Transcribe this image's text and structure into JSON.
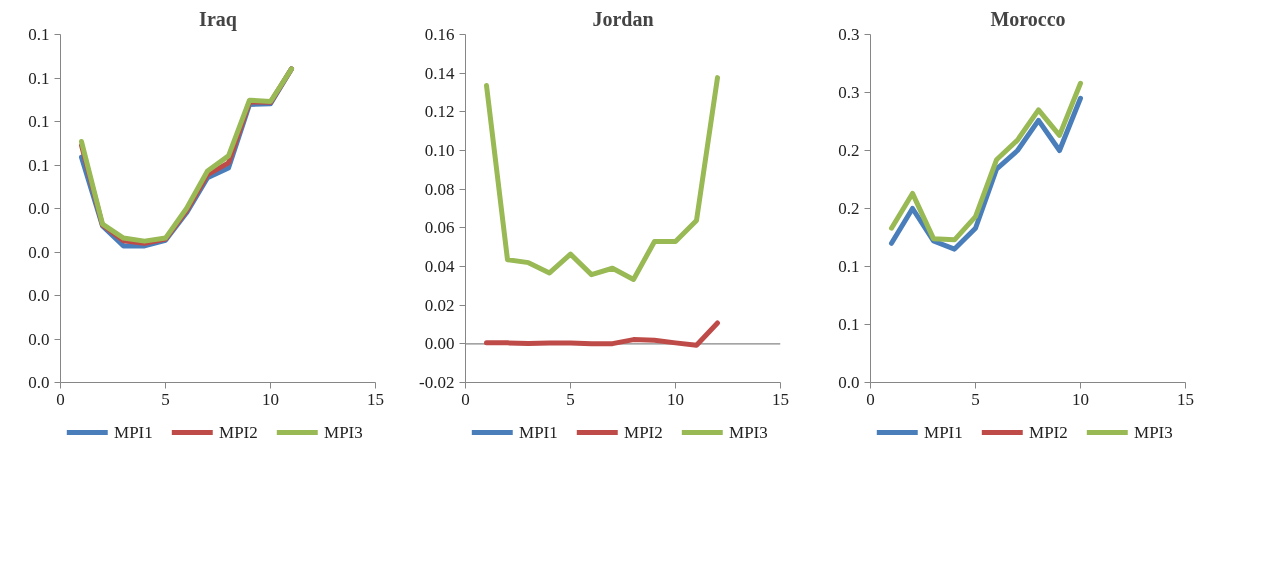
{
  "chart_data": [
    {
      "type": "line",
      "title": "Iraq",
      "x": [
        1,
        2,
        3,
        4,
        5,
        6,
        7,
        8,
        9,
        10,
        11
      ],
      "xlim": [
        0,
        15
      ],
      "xticks": [
        0,
        5,
        10,
        15
      ],
      "ylim": [
        0,
        0.08
      ],
      "yticks": [
        {
          "value": 0,
          "label": "0.0"
        },
        {
          "value": 0.01,
          "label": "0.0"
        },
        {
          "value": 0.02,
          "label": "0.0"
        },
        {
          "value": 0.03,
          "label": "0.0"
        },
        {
          "value": 0.04,
          "label": "0.0"
        },
        {
          "value": 0.05,
          "label": "0.1"
        },
        {
          "value": 0.06,
          "label": "0.1"
        },
        {
          "value": 0.07,
          "label": "0.1"
        },
        {
          "value": 0.08,
          "label": "0.1"
        }
      ],
      "grid": false,
      "legend": "bottom",
      "series": [
        {
          "name": "MPI1",
          "color": "#4a7ebb",
          "values": [
            0.0518,
            0.036,
            0.0314,
            0.0314,
            0.0327,
            0.039,
            0.0471,
            0.0493,
            0.0639,
            0.0641,
            0.0721
          ]
        },
        {
          "name": "MPI2",
          "color": "#be4b48",
          "values": [
            0.0545,
            0.0362,
            0.0326,
            0.032,
            0.033,
            0.0395,
            0.0478,
            0.0505,
            0.0645,
            0.0644,
            0.0721
          ]
        },
        {
          "name": "MPI3",
          "color": "#98b954",
          "values": [
            0.0554,
            0.0364,
            0.0332,
            0.0325,
            0.0332,
            0.04,
            0.0486,
            0.0521,
            0.0649,
            0.0646,
            0.0721
          ]
        }
      ]
    },
    {
      "type": "line",
      "title": "Jordan",
      "x": [
        1,
        2,
        3,
        4,
        5,
        6,
        7,
        8,
        9,
        10,
        11,
        12
      ],
      "xlim": [
        0,
        15
      ],
      "xticks": [
        0,
        5,
        10,
        15
      ],
      "ylim": [
        -0.02,
        0.16
      ],
      "yticks": [
        {
          "value": -0.02,
          "label": "-0.02"
        },
        {
          "value": 0,
          "label": "0.00"
        },
        {
          "value": 0.02,
          "label": "0.02"
        },
        {
          "value": 0.04,
          "label": "0.04"
        },
        {
          "value": 0.06,
          "label": "0.06"
        },
        {
          "value": 0.08,
          "label": "0.08"
        },
        {
          "value": 0.1,
          "label": "0.10"
        },
        {
          "value": 0.12,
          "label": "0.12"
        },
        {
          "value": 0.14,
          "label": "0.14"
        },
        {
          "value": 0.16,
          "label": "0.16"
        }
      ],
      "grid": false,
      "legend": "bottom",
      "ref_lines": [
        {
          "axis": "y",
          "value": 0,
          "color": "#868686"
        }
      ],
      "series": [
        {
          "name": "MPI1",
          "color": "#4a7ebb",
          "values": [
            null,
            null,
            null,
            null,
            null,
            null,
            null,
            null,
            null,
            null,
            null,
            null
          ]
        },
        {
          "name": "MPI2",
          "color": "#be4b48",
          "values": [
            0.0005,
            0.0005,
            0.0002,
            0.0004,
            0.0004,
            0,
            0.0001,
            0.0022,
            0.0018,
            0.0005,
            -0.0007,
            0.0108
          ]
        },
        {
          "name": "MPI3",
          "color": "#98b954",
          "values": [
            0.1336,
            0.0435,
            0.042,
            0.0367,
            0.0464,
            0.0358,
            0.0391,
            0.0333,
            0.0529,
            0.0529,
            0.0638,
            0.1377
          ]
        }
      ]
    },
    {
      "type": "line",
      "title": "Morocco",
      "x": [
        1,
        2,
        3,
        4,
        5,
        6,
        7,
        8,
        9,
        10
      ],
      "xlim": [
        0,
        15
      ],
      "xticks": [
        0,
        5,
        10,
        15
      ],
      "ylim": [
        0,
        0.3
      ],
      "yticks": [
        {
          "value": 0,
          "label": "0.0"
        },
        {
          "value": 0.05,
          "label": "0.1"
        },
        {
          "value": 0.1,
          "label": "0.1"
        },
        {
          "value": 0.15,
          "label": "0.2"
        },
        {
          "value": 0.2,
          "label": "0.2"
        },
        {
          "value": 0.25,
          "label": "0.3"
        },
        {
          "value": 0.3,
          "label": "0.3"
        }
      ],
      "grid": false,
      "legend": "bottom",
      "series": [
        {
          "name": "MPI1",
          "color": "#4a7ebb",
          "values": [
            0.12,
            0.15,
            0.122,
            0.115,
            0.133,
            0.184,
            0.2,
            0.226,
            0.2,
            0.245
          ]
        },
        {
          "name": "MPI2",
          "color": "#be4b48",
          "values": [
            null,
            null,
            null,
            null,
            null,
            null,
            null,
            null,
            null,
            null
          ]
        },
        {
          "name": "MPI3",
          "color": "#98b954",
          "values": [
            0.133,
            0.163,
            0.124,
            0.123,
            0.143,
            0.192,
            0.209,
            0.235,
            0.213,
            0.258
          ]
        }
      ]
    }
  ]
}
